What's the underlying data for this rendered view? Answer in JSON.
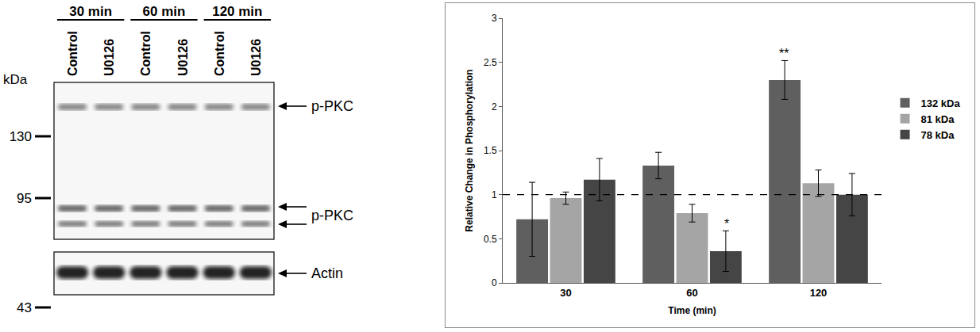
{
  "blot": {
    "time_points": [
      "30 min",
      "60 min",
      "120 min"
    ],
    "lanes": [
      "Control",
      "U0126"
    ],
    "unit": "kDa",
    "markers": [
      130,
      95,
      43
    ],
    "band_labels": [
      "p-PKC",
      "p-PKC",
      "Actin"
    ]
  },
  "chart_data": {
    "type": "bar",
    "categories": [
      "30",
      "60",
      "120"
    ],
    "x_label": "Time (min)",
    "y_label": "Relative Change in Phosphorylation",
    "series": [
      {
        "name": "132 kDa",
        "color": "#5f5f5f",
        "values": [
          0.72,
          1.33,
          2.3
        ],
        "errors": [
          0.42,
          0.15,
          0.22
        ]
      },
      {
        "name": "81 kDa",
        "color": "#a5a5a5",
        "values": [
          0.96,
          0.79,
          1.13
        ],
        "errors": [
          0.07,
          0.1,
          0.15
        ]
      },
      {
        "name": "78 kDa",
        "color": "#454545",
        "values": [
          1.17,
          0.36,
          1.0
        ],
        "errors": [
          0.24,
          0.23,
          0.24
        ]
      }
    ],
    "reference_line": 1,
    "annotations": [
      {
        "text": "**",
        "category": "120",
        "series": "132 kDa"
      },
      {
        "text": "*",
        "category": "60",
        "series": "78 kDa"
      }
    ],
    "ylim": [
      0,
      3
    ],
    "yticks": [
      0,
      0.5,
      1,
      1.5,
      2,
      2.5,
      3
    ],
    "grid": false,
    "legend": "right"
  }
}
